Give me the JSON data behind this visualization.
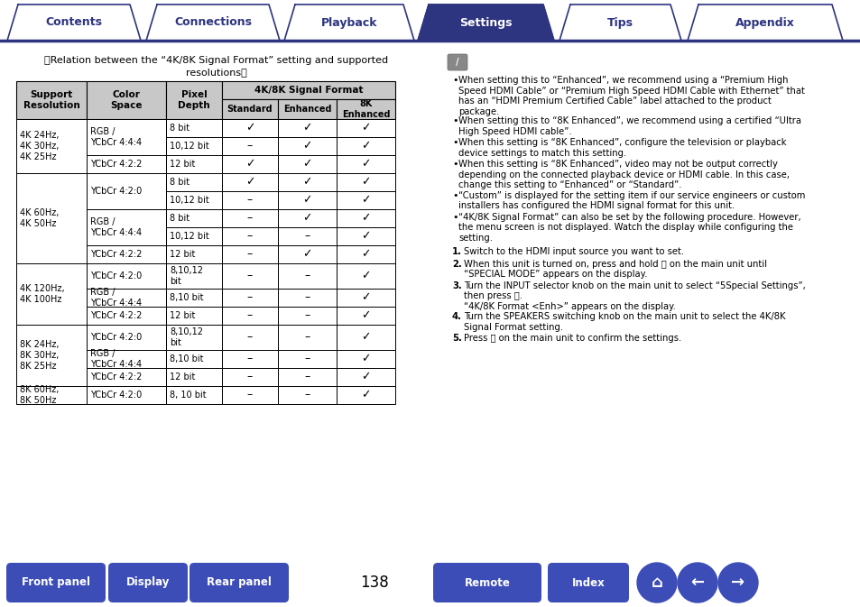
{
  "page_bg": "#ffffff",
  "nav_tabs": [
    "Contents",
    "Connections",
    "Playback",
    "Settings",
    "Tips",
    "Appendix"
  ],
  "active_tab": "Settings",
  "tab_bg_inactive": "#ffffff",
  "tab_bg_active": "#2d3480",
  "tab_text_inactive": "#2d3480",
  "tab_text_active": "#ffffff",
  "nav_border_color": "#2d3480",
  "table_header2_span": "4K/8K Signal Format",
  "table_subheaders": [
    "Standard",
    "Enhanced",
    "8K\nEnhanced"
  ],
  "table_rows": [
    {
      "resolution": "4K 24Hz,\n4K 30Hz,\n4K 25Hz",
      "color_space_rows": [
        {
          "color": "RGB /\nYCbCr 4:4:4",
          "pixel": "8 bit",
          "std": "✓",
          "enh": "✓",
          "8ke": "✓"
        },
        {
          "color": "",
          "pixel": "10,12 bit",
          "std": "–",
          "enh": "✓",
          "8ke": "✓"
        },
        {
          "color": "YCbCr 4:2:2",
          "pixel": "12 bit",
          "std": "✓",
          "enh": "✓",
          "8ke": "✓"
        }
      ]
    },
    {
      "resolution": "4K 60Hz,\n4K 50Hz",
      "color_space_rows": [
        {
          "color": "YCbCr 4:2:0",
          "pixel": "8 bit",
          "std": "✓",
          "enh": "✓",
          "8ke": "✓"
        },
        {
          "color": "",
          "pixel": "10,12 bit",
          "std": "–",
          "enh": "✓",
          "8ke": "✓"
        },
        {
          "color": "RGB /\nYCbCr 4:4:4",
          "pixel": "8 bit",
          "std": "–",
          "enh": "✓",
          "8ke": "✓"
        },
        {
          "color": "",
          "pixel": "10,12 bit",
          "std": "–",
          "enh": "–",
          "8ke": "✓"
        },
        {
          "color": "YCbCr 4:2:2",
          "pixel": "12 bit",
          "std": "–",
          "enh": "✓",
          "8ke": "✓"
        }
      ]
    },
    {
      "resolution": "4K 120Hz,\n4K 100Hz",
      "color_space_rows": [
        {
          "color": "YCbCr 4:2:0",
          "pixel": "8,10,12\nbit",
          "std": "–",
          "enh": "–",
          "8ke": "✓"
        },
        {
          "color": "RGB /\nYCbCr 4:4:4",
          "pixel": "8,10 bit",
          "std": "–",
          "enh": "–",
          "8ke": "✓"
        },
        {
          "color": "YCbCr 4:2:2",
          "pixel": "12 bit",
          "std": "–",
          "enh": "–",
          "8ke": "✓"
        }
      ]
    },
    {
      "resolution": "8K 24Hz,\n8K 30Hz,\n8K 25Hz",
      "color_space_rows": [
        {
          "color": "YCbCr 4:2:0",
          "pixel": "8,10,12\nbit",
          "std": "–",
          "enh": "–",
          "8ke": "✓"
        },
        {
          "color": "RGB /\nYCbCr 4:4:4",
          "pixel": "8,10 bit",
          "std": "–",
          "enh": "–",
          "8ke": "✓"
        },
        {
          "color": "YCbCr 4:2:2",
          "pixel": "12 bit",
          "std": "–",
          "enh": "–",
          "8ke": "✓"
        }
      ]
    },
    {
      "resolution": "8K 60Hz,\n8K 50Hz",
      "color_space_rows": [
        {
          "color": "YCbCr 4:2:0",
          "pixel": "8, 10 bit",
          "std": "–",
          "enh": "–",
          "8ke": "✓"
        }
      ]
    }
  ],
  "right_bullet_points": [
    "When setting this to “Enhanced”, we recommend using a “Premium High\nSpeed HDMI Cable” or “Premium High Speed HDMI Cable with Ethernet” that\nhas an “HDMI Premium Certified Cable” label attached to the product\npackage.",
    "When setting this to “8K Enhanced”, we recommend using a certified “Ultra\nHigh Speed HDMI cable”.",
    "When this setting is “8K Enhanced”, configure the television or playback\ndevice settings to match this setting.",
    "When this setting is “8K Enhanced”, video may not be output correctly\ndepending on the connected playback device or HDMI cable. In this case,\nchange this setting to “Enhanced” or “Standard”.",
    "“Custom” is displayed for the setting item if our service engineers or custom\ninstallers has configured the HDMI signal format for this unit.",
    "“4K/8K Signal Format” can also be set by the following procedure. However,\nthe menu screen is not displayed. Watch the display while configuring the\nsetting."
  ],
  "right_numbered_points": [
    "Switch to the HDMI input source you want to set.",
    "When this unit is turned on, press and hold ⏻ on the main unit until\n“SPECIAL MODE” appears on the display.",
    "Turn the INPUT selector knob on the main unit to select “5Special Settings”,\nthen press ⏻.\n“4K/8K Format <Enh>” appears on the display.",
    "Turn the SPEAKERS switching knob on the main unit to select the 4K/8K\nSignal Format setting.",
    "Press ⏻ on the main unit to confirm the settings."
  ],
  "bottom_buttons": [
    "Front panel",
    "Display",
    "Rear panel",
    "Remote",
    "Index"
  ],
  "page_number": "138",
  "btn_color": "#3d4db7",
  "btn_text_color": "#ffffff"
}
